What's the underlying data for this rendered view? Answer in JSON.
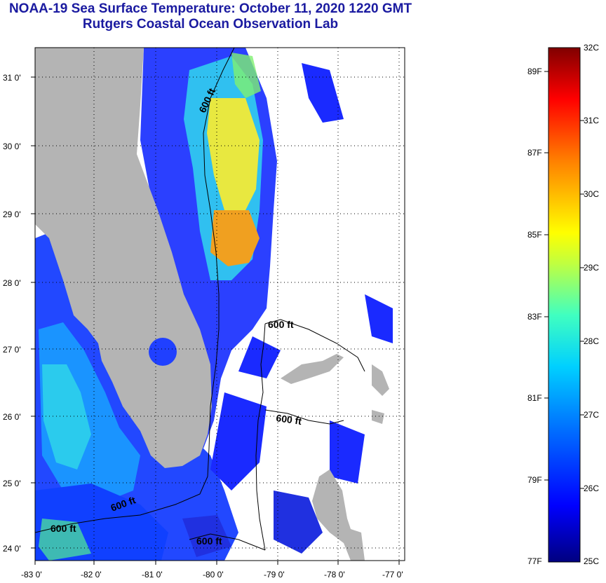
{
  "header": {
    "title": "NOAA-19 Sea Surface Temperature:  October 11, 2020 1220 GMT",
    "subtitle": "Rutgers Coastal Ocean Observation Lab"
  },
  "map": {
    "lat_ticks": [
      "31 0'",
      "30 0'",
      "29 0'",
      "28 0'",
      "27 0'",
      "26 0'",
      "25 0'",
      "24 0'"
    ],
    "lon_ticks": [
      "-83 0'",
      "-82 0'",
      "-81 0'",
      "-80 0'",
      "-79 0'",
      "-78 0'",
      "-77 0'"
    ],
    "contour_labels": [
      "600 ft",
      "600 ft",
      "600 ft",
      "600 ft",
      "600 ft",
      "600 ft"
    ],
    "colors": {
      "land": "#b4b4b4",
      "cloud": "#ffffff",
      "frame": "#000000"
    }
  },
  "colorbar": {
    "celsius": [
      "32C",
      "31C",
      "30C",
      "29C",
      "28C",
      "27C",
      "26C",
      "25C"
    ],
    "fahrenheit": [
      "89F",
      "87F",
      "85F",
      "83F",
      "81F",
      "79F",
      "77F"
    ],
    "colors": [
      "#000080",
      "#0000ff",
      "#0080ff",
      "#00d0ff",
      "#40ffc0",
      "#c0ff40",
      "#ffff00",
      "#ff8000",
      "#ff0000",
      "#800000"
    ]
  }
}
